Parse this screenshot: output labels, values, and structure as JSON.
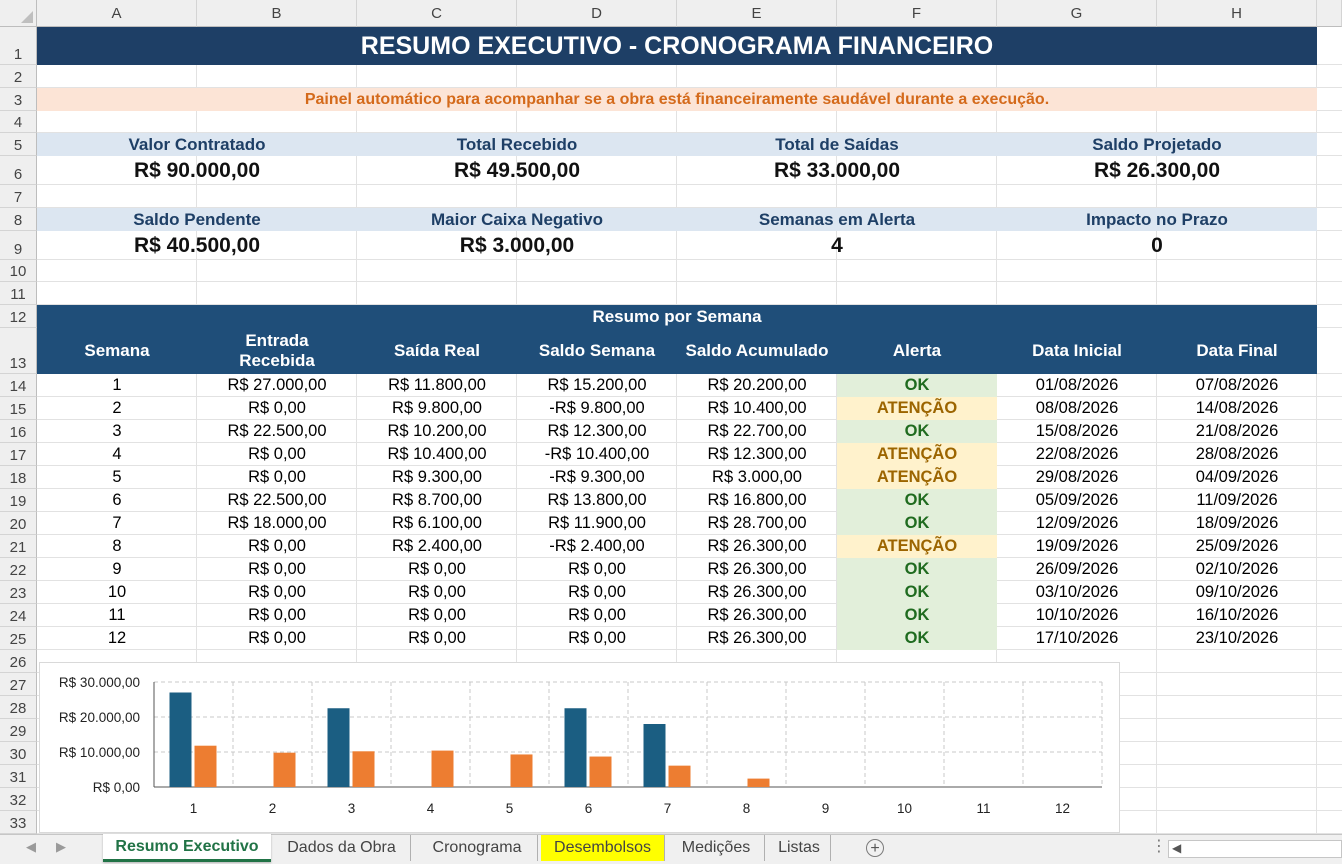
{
  "sheet": {
    "columns": [
      "A",
      "B",
      "C",
      "D",
      "E",
      "F",
      "G",
      "H"
    ],
    "rows": [
      "1",
      "2",
      "3",
      "4",
      "5",
      "6",
      "7",
      "8",
      "9",
      "10",
      "11",
      "12",
      "13",
      "14",
      "15",
      "16",
      "17",
      "18",
      "19",
      "20",
      "21",
      "22",
      "23",
      "24",
      "25",
      "26",
      "27",
      "28",
      "29",
      "30",
      "31",
      "32",
      "33"
    ]
  },
  "header": {
    "title": "RESUMO EXECUTIVO - CRONOGRAMA FINANCEIRO",
    "subtitle": "Painel automático para acompanhar se a obra está financeiramente saudável durante a execução."
  },
  "kpis": [
    {
      "label": "Valor Contratado",
      "value": "R$ 90.000,00"
    },
    {
      "label": "Total Recebido",
      "value": "R$ 49.500,00"
    },
    {
      "label": "Total de Saídas",
      "value": "R$ 33.000,00"
    },
    {
      "label": "Saldo Projetado",
      "value": "R$ 26.300,00"
    },
    {
      "label": "Saldo Pendente",
      "value": "R$ 40.500,00"
    },
    {
      "label": "Maior Caixa Negativo",
      "value": "R$ 3.000,00"
    },
    {
      "label": "Semanas em Alerta",
      "value": "4"
    },
    {
      "label": "Impacto no Prazo",
      "value": "0"
    }
  ],
  "table": {
    "caption": "Resumo por Semana",
    "headers": [
      "Semana",
      "Entrada Recebida",
      "Saída Real",
      "Saldo Semana",
      "Saldo Acumulado",
      "Alerta",
      "Data Inicial",
      "Data Final"
    ],
    "rows": [
      [
        "1",
        "R$ 27.000,00",
        "R$ 11.800,00",
        "R$ 15.200,00",
        "R$ 20.200,00",
        "OK",
        "01/08/2026",
        "07/08/2026"
      ],
      [
        "2",
        "R$ 0,00",
        "R$ 9.800,00",
        "-R$ 9.800,00",
        "R$ 10.400,00",
        "ATENÇÃO",
        "08/08/2026",
        "14/08/2026"
      ],
      [
        "3",
        "R$ 22.500,00",
        "R$ 10.200,00",
        "R$ 12.300,00",
        "R$ 22.700,00",
        "OK",
        "15/08/2026",
        "21/08/2026"
      ],
      [
        "4",
        "R$ 0,00",
        "R$ 10.400,00",
        "-R$ 10.400,00",
        "R$ 12.300,00",
        "ATENÇÃO",
        "22/08/2026",
        "28/08/2026"
      ],
      [
        "5",
        "R$ 0,00",
        "R$ 9.300,00",
        "-R$ 9.300,00",
        "R$ 3.000,00",
        "ATENÇÃO",
        "29/08/2026",
        "04/09/2026"
      ],
      [
        "6",
        "R$ 22.500,00",
        "R$ 8.700,00",
        "R$ 13.800,00",
        "R$ 16.800,00",
        "OK",
        "05/09/2026",
        "11/09/2026"
      ],
      [
        "7",
        "R$ 18.000,00",
        "R$ 6.100,00",
        "R$ 11.900,00",
        "R$ 28.700,00",
        "OK",
        "12/09/2026",
        "18/09/2026"
      ],
      [
        "8",
        "R$ 0,00",
        "R$ 2.400,00",
        "-R$ 2.400,00",
        "R$ 26.300,00",
        "ATENÇÃO",
        "19/09/2026",
        "25/09/2026"
      ],
      [
        "9",
        "R$ 0,00",
        "R$ 0,00",
        "R$ 0,00",
        "R$ 26.300,00",
        "OK",
        "26/09/2026",
        "02/10/2026"
      ],
      [
        "10",
        "R$ 0,00",
        "R$ 0,00",
        "R$ 0,00",
        "R$ 26.300,00",
        "OK",
        "03/10/2026",
        "09/10/2026"
      ],
      [
        "11",
        "R$ 0,00",
        "R$ 0,00",
        "R$ 0,00",
        "R$ 26.300,00",
        "OK",
        "10/10/2026",
        "16/10/2026"
      ],
      [
        "12",
        "R$ 0,00",
        "R$ 0,00",
        "R$ 0,00",
        "R$ 26.300,00",
        "OK",
        "17/10/2026",
        "23/10/2026"
      ]
    ]
  },
  "chart_data": {
    "type": "bar",
    "categories": [
      "1",
      "2",
      "3",
      "4",
      "5",
      "6",
      "7",
      "8",
      "9",
      "10",
      "11",
      "12"
    ],
    "series": [
      {
        "values": [
          27000,
          0,
          22500,
          0,
          0,
          22500,
          18000,
          0,
          0,
          0,
          0,
          0
        ],
        "color": "#1b5e82"
      },
      {
        "values": [
          11800,
          9800,
          10200,
          10400,
          9300,
          8700,
          6100,
          2400,
          0,
          0,
          0,
          0
        ],
        "color": "#ed7d31"
      }
    ],
    "yticks": [
      "R$ 0,00",
      "R$ 10.000,00",
      "R$ 20.000,00",
      "R$ 30.000,00"
    ],
    "ylim": [
      0,
      30000
    ],
    "grid": true,
    "legend": "none"
  },
  "tabs": [
    {
      "label": "Resumo Executivo",
      "active": true
    },
    {
      "label": "Dados da Obra"
    },
    {
      "label": "Cronograma"
    },
    {
      "label": "Desembolsos",
      "highlight": "#ffff00"
    },
    {
      "label": "Medições"
    },
    {
      "label": "Listas"
    }
  ],
  "icons": {
    "add_sheet": "plus-circle-icon",
    "nav_prev": "triangle-left-icon",
    "nav_next": "triangle-right-icon"
  }
}
